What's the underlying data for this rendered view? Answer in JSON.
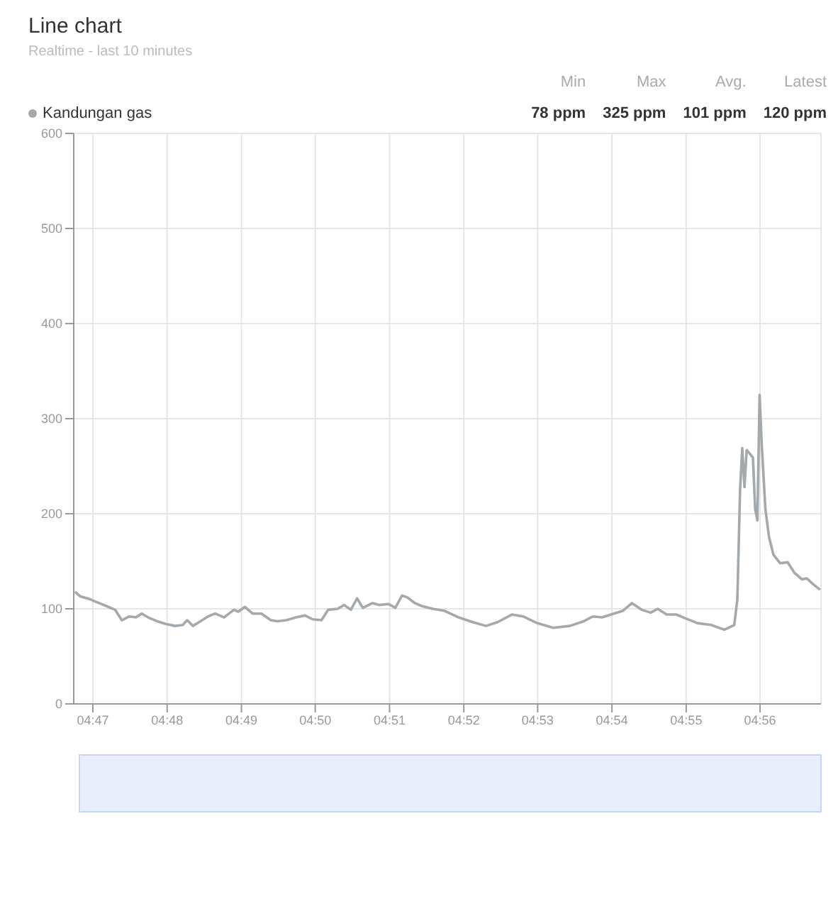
{
  "chart_data": {
    "type": "line",
    "title": "Line chart",
    "subtitle": "Realtime - last 10 minutes",
    "annotations": [
      "Min",
      "Max",
      "Avg.",
      "Latest",
      "78 ppm",
      "325 ppm",
      "101 ppm",
      "120 ppm"
    ],
    "x": [
      4.7793,
      4.7805,
      4.7827,
      4.7842,
      4.7863,
      4.7883,
      4.7898,
      4.7915,
      4.793,
      4.7943,
      4.7957,
      4.7977,
      4.7998,
      4.8018,
      4.8035,
      4.8045,
      4.8058,
      4.8072,
      4.8092,
      4.8108,
      4.8128,
      4.815,
      4.816,
      4.8175,
      4.8192,
      4.8212,
      4.8233,
      4.8248,
      4.8268,
      4.829,
      4.831,
      4.8327,
      4.8347,
      4.8362,
      4.8383,
      4.8398,
      4.8413,
      4.8427,
      4.844,
      4.8462,
      4.8477,
      4.8498,
      4.8513,
      4.8528,
      4.854,
      4.8557,
      4.8572,
      4.8597,
      4.8623,
      4.8655,
      4.8687,
      4.8717,
      4.8743,
      4.8775,
      4.88,
      4.8832,
      4.8868,
      4.8905,
      4.8937,
      4.8957,
      4.8978,
      4.8998,
      4.9025,
      4.9045,
      4.9067,
      4.9087,
      4.9103,
      4.9123,
      4.9145,
      4.9165,
      4.9192,
      4.9223,
      4.9253,
      4.9275,
      4.9282,
      4.9288,
      4.9293,
      4.9298,
      4.9303,
      4.9312,
      4.9317,
      4.9322,
      4.9327,
      4.9332,
      4.9337,
      4.9345,
      4.9353,
      4.9363,
      4.9378,
      4.9395,
      4.941,
      4.9427,
      4.9438,
      4.9452,
      4.9468
    ],
    "series": [
      {
        "name": "Kandungan gas",
        "color": "#a3a9ad",
        "values": [
          118,
          113,
          110,
          107,
          103,
          99,
          88,
          92,
          91,
          95,
          91,
          87,
          84,
          82,
          83,
          88,
          82,
          86,
          92,
          95,
          91,
          99,
          97,
          102,
          95,
          95,
          88,
          87,
          88,
          91,
          93,
          89,
          88,
          99,
          100,
          104,
          99,
          111,
          101,
          106,
          104,
          105,
          101,
          114,
          112,
          106,
          103,
          100,
          98,
          91,
          86,
          82,
          86,
          94,
          92,
          85,
          80,
          82,
          87,
          92,
          91,
          94,
          98,
          106,
          99,
          96,
          100,
          94,
          94,
          90,
          85,
          83,
          78,
          83,
          110,
          224,
          269,
          228,
          267,
          262,
          259,
          205,
          193,
          325,
          271,
          205,
          176,
          157,
          148,
          149,
          138,
          131,
          132,
          126,
          120
        ]
      }
    ],
    "xlim": [
      4.779,
      4.947
    ],
    "xticks": [
      {
        "value": 4.7833,
        "label": "04:47"
      },
      {
        "value": 4.8,
        "label": "04:48"
      },
      {
        "value": 4.8167,
        "label": "04:49"
      },
      {
        "value": 4.8333,
        "label": "04:50"
      },
      {
        "value": 4.85,
        "label": "04:51"
      },
      {
        "value": 4.8667,
        "label": "04:52"
      },
      {
        "value": 4.8833,
        "label": "04:53"
      },
      {
        "value": 4.9,
        "label": "04:54"
      },
      {
        "value": 4.9167,
        "label": "04:55"
      },
      {
        "value": 4.9333,
        "label": "04:56"
      }
    ],
    "ylim": [
      0,
      600
    ],
    "yticks": [
      0,
      100,
      200,
      300,
      400,
      500,
      600
    ],
    "grid": true,
    "legend": "top left",
    "marker": "none",
    "line_style": "solid"
  }
}
